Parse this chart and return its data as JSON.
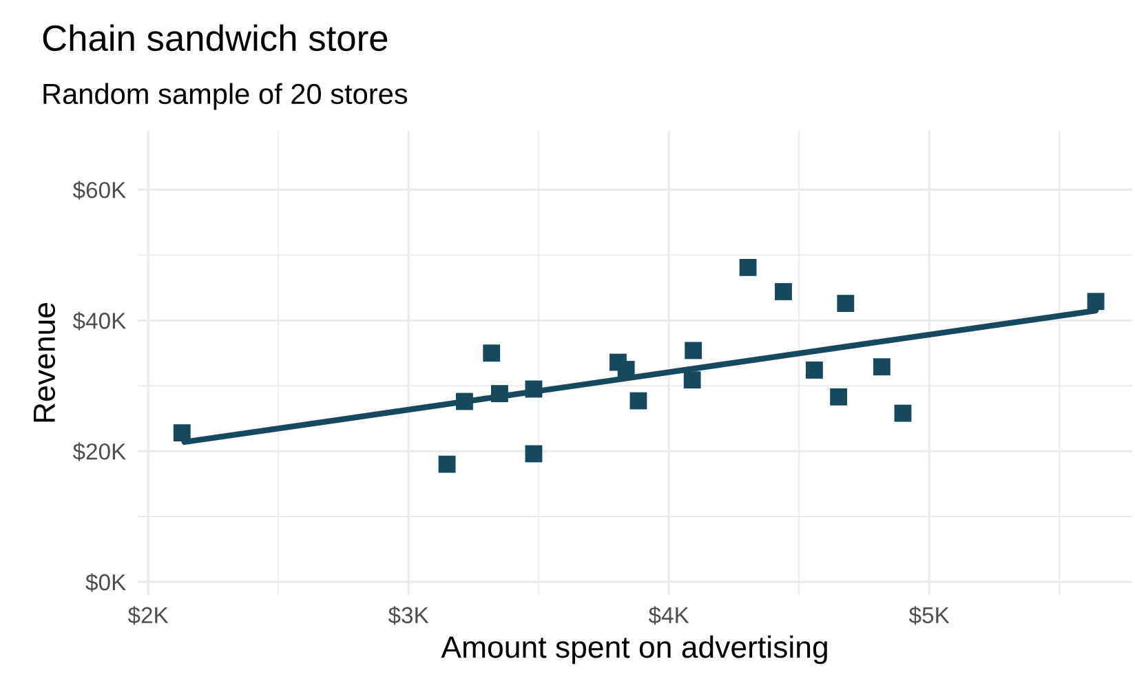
{
  "chart_data": {
    "type": "scatter",
    "title": "Chain sandwich store",
    "subtitle": "Random sample of 20 stores",
    "xlabel": "Amount spent on advertising",
    "ylabel": "Revenue",
    "series": [
      {
        "color": "#17495e",
        "marker": "square",
        "x": [
          2130,
          3148,
          3215,
          3319,
          3350,
          3481,
          3481,
          3805,
          3836,
          3883,
          4094,
          4090,
          4304,
          4440,
          4679,
          4559,
          4652,
          4818,
          4899,
          5640
        ],
        "values": [
          22.8,
          18.0,
          27.6,
          35.0,
          28.8,
          29.5,
          19.6,
          33.6,
          32.5,
          27.7,
          35.4,
          30.9,
          48.1,
          44.4,
          42.6,
          32.4,
          28.3,
          32.9,
          25.8,
          42.9
        ]
      },
      {
        "type": "line",
        "color": "#17495e",
        "marker": "none",
        "line_style": "solid",
        "x": [
          2139,
          5640
        ],
        "values": [
          21.4,
          41.5
        ]
      }
    ],
    "xlim": [
      1960,
      5780
    ],
    "xticks": [
      {
        "value": 2000,
        "label": "$2K"
      },
      {
        "value": 3000,
        "label": "$3K"
      },
      {
        "value": 4000,
        "label": "$4K"
      },
      {
        "value": 5000,
        "label": "$5K"
      }
    ],
    "ylim": [
      -2,
      69
    ],
    "yticks": [
      {
        "value": 0,
        "label": "$0K"
      },
      {
        "value": 20,
        "label": "$20K"
      },
      {
        "value": 40,
        "label": "$40K"
      },
      {
        "value": 60,
        "label": "$60K"
      }
    ],
    "grid": true
  }
}
